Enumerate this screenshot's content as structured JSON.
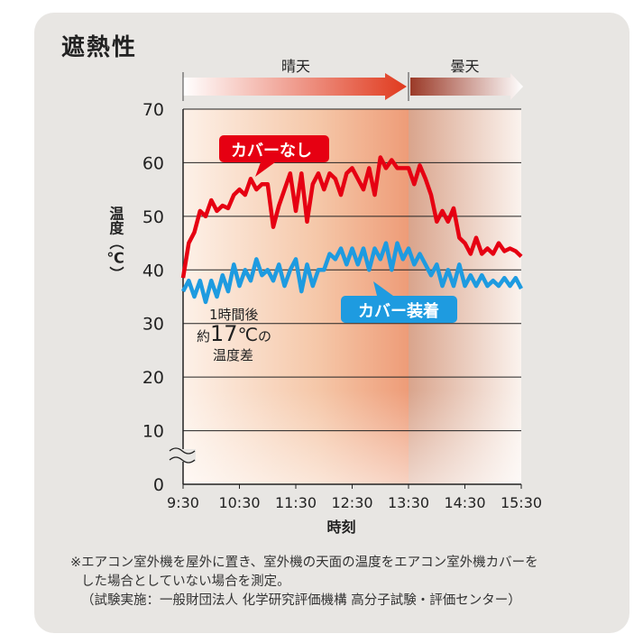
{
  "title": "遮熱性",
  "chart_data": {
    "type": "line",
    "ylabel": "温度（℃）",
    "xlabel": "時刻",
    "ylim": [
      0,
      70
    ],
    "yticks": [
      0,
      10,
      20,
      30,
      40,
      50,
      60,
      70
    ],
    "xticks": [
      "9:30",
      "10:30",
      "11:30",
      "12:30",
      "13:30",
      "14:30",
      "15:30"
    ],
    "grid": true,
    "weather": [
      {
        "label": "晴天",
        "from": "9:30",
        "to": "13:30",
        "color": "#e03a1e"
      },
      {
        "label": "曇天",
        "from": "13:30",
        "to": "15:30",
        "color": "#9b3a28"
      }
    ],
    "series": [
      {
        "name": "カバーなし",
        "color": "#e60012",
        "points": [
          [
            "9:30",
            38.5
          ],
          [
            "9:36",
            45
          ],
          [
            "9:42",
            47
          ],
          [
            "9:48",
            51
          ],
          [
            "9:54",
            50
          ],
          [
            "10:00",
            53
          ],
          [
            "10:06",
            51
          ],
          [
            "10:12",
            52
          ],
          [
            "10:18",
            51.5
          ],
          [
            "10:24",
            54
          ],
          [
            "10:30",
            55
          ],
          [
            "10:36",
            54
          ],
          [
            "10:42",
            57
          ],
          [
            "10:48",
            55
          ],
          [
            "10:54",
            56
          ],
          [
            "11:00",
            56
          ],
          [
            "11:06",
            48
          ],
          [
            "11:12",
            52
          ],
          [
            "11:18",
            55
          ],
          [
            "11:24",
            58
          ],
          [
            "11:30",
            51
          ],
          [
            "11:36",
            58
          ],
          [
            "11:42",
            49
          ],
          [
            "11:48",
            56
          ],
          [
            "11:54",
            58
          ],
          [
            "12:00",
            55
          ],
          [
            "12:06",
            58
          ],
          [
            "12:12",
            57
          ],
          [
            "12:18",
            54
          ],
          [
            "12:24",
            58
          ],
          [
            "12:30",
            59
          ],
          [
            "12:36",
            57
          ],
          [
            "12:42",
            55
          ],
          [
            "12:48",
            59
          ],
          [
            "12:54",
            54
          ],
          [
            "13:00",
            61
          ],
          [
            "13:06",
            59
          ],
          [
            "13:12",
            60.5
          ],
          [
            "13:18",
            59
          ],
          [
            "13:24",
            59
          ],
          [
            "13:30",
            59
          ],
          [
            "13:36",
            56
          ],
          [
            "13:42",
            59.5
          ],
          [
            "13:48",
            57
          ],
          [
            "13:54",
            54
          ],
          [
            "14:00",
            49
          ],
          [
            "14:06",
            51
          ],
          [
            "14:12",
            49
          ],
          [
            "14:18",
            51.5
          ],
          [
            "14:24",
            46
          ],
          [
            "14:30",
            45
          ],
          [
            "14:36",
            43
          ],
          [
            "14:42",
            46
          ],
          [
            "14:48",
            43
          ],
          [
            "14:54",
            44
          ],
          [
            "15:00",
            43
          ],
          [
            "15:06",
            45
          ],
          [
            "15:12",
            43.5
          ],
          [
            "15:18",
            44
          ],
          [
            "15:24",
            43.5
          ],
          [
            "15:30",
            42.5
          ]
        ]
      },
      {
        "name": "カバー装着",
        "color": "#1e9be0",
        "points": [
          [
            "9:30",
            36
          ],
          [
            "9:36",
            38
          ],
          [
            "9:42",
            35
          ],
          [
            "9:48",
            38
          ],
          [
            "9:54",
            34
          ],
          [
            "10:00",
            38
          ],
          [
            "10:06",
            35
          ],
          [
            "10:12",
            39
          ],
          [
            "10:18",
            36
          ],
          [
            "10:24",
            41
          ],
          [
            "10:30",
            37
          ],
          [
            "10:36",
            40
          ],
          [
            "10:42",
            38
          ],
          [
            "10:48",
            42
          ],
          [
            "10:54",
            39
          ],
          [
            "11:00",
            40
          ],
          [
            "11:06",
            38
          ],
          [
            "11:12",
            41
          ],
          [
            "11:18",
            37
          ],
          [
            "11:24",
            40
          ],
          [
            "11:30",
            42
          ],
          [
            "11:36",
            36
          ],
          [
            "11:42",
            41
          ],
          [
            "11:48",
            37
          ],
          [
            "11:54",
            40
          ],
          [
            "12:00",
            40
          ],
          [
            "12:06",
            43
          ],
          [
            "12:12",
            42
          ],
          [
            "12:18",
            44
          ],
          [
            "12:24",
            41
          ],
          [
            "12:30",
            44
          ],
          [
            "12:36",
            41
          ],
          [
            "12:42",
            44
          ],
          [
            "12:48",
            40
          ],
          [
            "12:54",
            44
          ],
          [
            "13:00",
            42
          ],
          [
            "13:06",
            45
          ],
          [
            "13:12",
            40
          ],
          [
            "13:18",
            45
          ],
          [
            "13:24",
            42
          ],
          [
            "13:30",
            44
          ],
          [
            "13:36",
            41
          ],
          [
            "13:42",
            43
          ],
          [
            "13:48",
            41
          ],
          [
            "13:54",
            39
          ],
          [
            "14:00",
            41
          ],
          [
            "14:06",
            37
          ],
          [
            "14:12",
            40
          ],
          [
            "14:18",
            37
          ],
          [
            "14:24",
            41
          ],
          [
            "14:30",
            37
          ],
          [
            "14:36",
            39
          ],
          [
            "14:42",
            37
          ],
          [
            "14:48",
            39
          ],
          [
            "14:54",
            37
          ],
          [
            "15:00",
            38
          ],
          [
            "15:06",
            37
          ],
          [
            "15:12",
            38.5
          ],
          [
            "15:18",
            37
          ],
          [
            "15:24",
            38.5
          ],
          [
            "15:30",
            36.5
          ]
        ]
      }
    ],
    "annotation": {
      "line1": "1時間後",
      "prefix": "約",
      "value": "17",
      "unit": "℃",
      "suffix": "の",
      "line3": "温度差"
    }
  },
  "note": {
    "line1": "※エアコン室外機を屋外に置き、室外機の天面の温度をエアコン室外機カバーを",
    "line2": "した場合としていない場合を測定。",
    "line3": "（試験実施：一般財団法人 化学研究評価機構 高分子試験・評価センター）"
  }
}
